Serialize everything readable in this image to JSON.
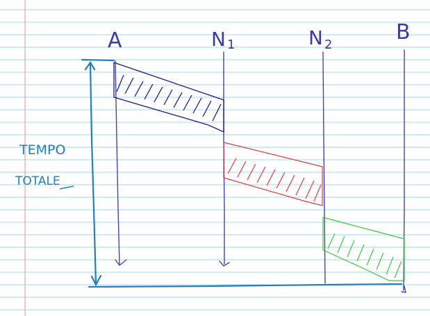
{
  "nodes": [
    {
      "id": "A",
      "label": "A",
      "sub": ""
    },
    {
      "id": "N1",
      "label": "N",
      "sub": "1"
    },
    {
      "id": "N2",
      "label": "N",
      "sub": "2"
    },
    {
      "id": "B",
      "label": "B",
      "sub": ""
    }
  ],
  "time_label": {
    "line1": "TEMPO",
    "line2": "TOTALE"
  },
  "colors": {
    "paper_line": "#9fd8ea",
    "margin_line": "#f0a0a8",
    "node_line": "#4444aa",
    "time_axis": "#1f7fbf",
    "segment_1": "#1a1a9a",
    "segment_2": "#e33a3a",
    "segment_3": "#3ac83a"
  },
  "segments": [
    {
      "from": "A",
      "to": "N1",
      "color_key": "segment_1"
    },
    {
      "from": "N1",
      "to": "N2",
      "color_key": "segment_2"
    },
    {
      "from": "N2",
      "to": "B",
      "color_key": "segment_3"
    }
  ]
}
